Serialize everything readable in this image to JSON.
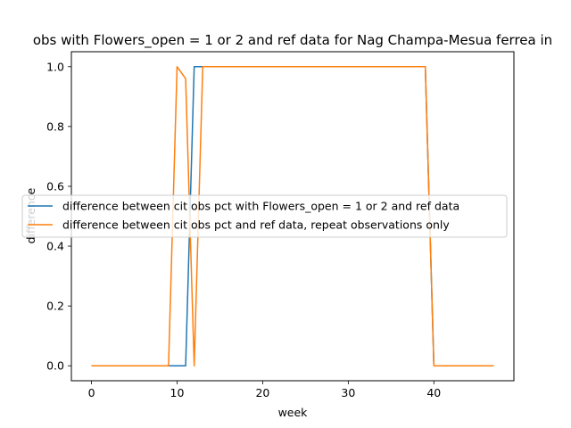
{
  "chart_data": {
    "type": "line",
    "title": "obs with Flowers_open = 1 or 2 and ref data for Nag Champa-Mesua ferrea in",
    "xlabel": "week",
    "ylabel": "difference",
    "xlim": [
      -2.35,
      49.35
    ],
    "ylim": [
      -0.05,
      1.05
    ],
    "xticks": [
      0,
      10,
      20,
      30,
      40
    ],
    "yticks": [
      0.0,
      0.2,
      0.4,
      0.6,
      0.8,
      1.0
    ],
    "xtick_labels": [
      "0",
      "10",
      "20",
      "30",
      "40"
    ],
    "ytick_labels": [
      "0.0",
      "0.2",
      "0.4",
      "0.6",
      "0.8",
      "1.0"
    ],
    "legend_position": "center-left",
    "series": [
      {
        "name": "difference between cit obs pct with Flowers_open = 1 or 2 and ref data",
        "color": "#1f77b4",
        "x": [
          0,
          1,
          2,
          3,
          4,
          5,
          6,
          7,
          8,
          9,
          10,
          11,
          12,
          13,
          14,
          15,
          16,
          17,
          18,
          19,
          20,
          21,
          22,
          23,
          24,
          25,
          26,
          27,
          28,
          29,
          30,
          31,
          32,
          33,
          34,
          35,
          36,
          37,
          38,
          39,
          40,
          41,
          42,
          43,
          44,
          45,
          46,
          47
        ],
        "y": [
          0,
          0,
          0,
          0,
          0,
          0,
          0,
          0,
          0,
          0,
          0,
          0,
          1,
          1,
          1,
          1,
          1,
          1,
          1,
          1,
          1,
          1,
          1,
          1,
          1,
          1,
          1,
          1,
          1,
          1,
          1,
          1,
          1,
          1,
          1,
          1,
          1,
          1,
          1,
          1,
          0,
          0,
          0,
          0,
          0,
          0,
          0,
          0
        ]
      },
      {
        "name": "difference between cit obs pct and ref data, repeat observations only",
        "color": "#ff7f0e",
        "x": [
          0,
          1,
          2,
          3,
          4,
          5,
          6,
          7,
          8,
          9,
          10,
          11,
          12,
          13,
          14,
          15,
          16,
          17,
          18,
          19,
          20,
          21,
          22,
          23,
          24,
          25,
          26,
          27,
          28,
          29,
          30,
          31,
          32,
          33,
          34,
          35,
          36,
          37,
          38,
          39,
          40,
          41,
          42,
          43,
          44,
          45,
          46,
          47
        ],
        "y": [
          0,
          0,
          0,
          0,
          0,
          0,
          0,
          0,
          0,
          0,
          1,
          0.96,
          0,
          1,
          1,
          1,
          1,
          1,
          1,
          1,
          1,
          1,
          1,
          1,
          1,
          1,
          1,
          1,
          1,
          1,
          1,
          1,
          1,
          1,
          1,
          1,
          1,
          1,
          1,
          1,
          0,
          0,
          0,
          0,
          0,
          0,
          0,
          0
        ]
      }
    ]
  }
}
